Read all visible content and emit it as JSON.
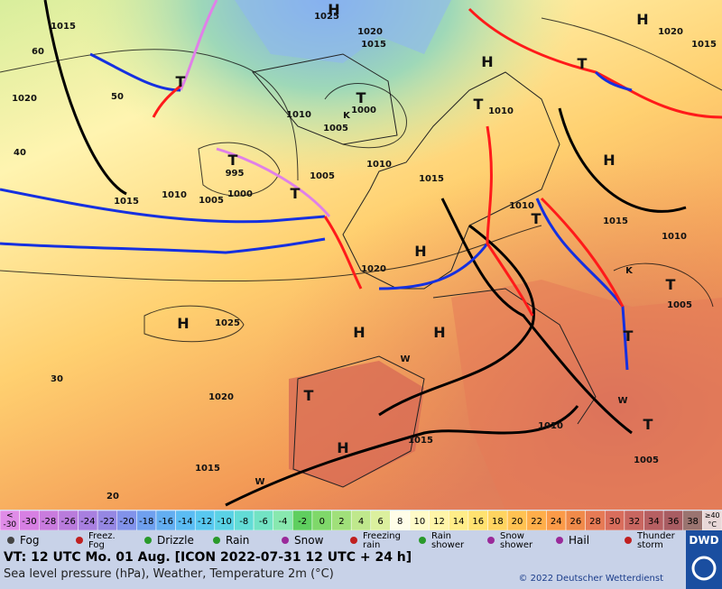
{
  "map": {
    "labels": [
      "1015",
      "1020",
      "40",
      "50",
      "60",
      "H",
      "1025",
      "1020",
      "1015",
      "T",
      "T",
      "1000",
      "K",
      "1005",
      "1010",
      "T",
      "995",
      "1000",
      "1005",
      "1010",
      "1015",
      "1005",
      "1010",
      "1015",
      "T",
      "H",
      "1020",
      "H",
      "1025",
      "H",
      "H",
      "1020",
      "T",
      "H",
      "1015",
      "1015",
      "30",
      "20",
      "H",
      "1020",
      "1015",
      "T",
      "H",
      "1015",
      "1010",
      "T",
      "1005",
      "T",
      "T",
      "1010",
      "1005",
      "W",
      "W",
      "W",
      "K",
      "1010",
      "T",
      "1010",
      "H",
      "T"
    ]
  },
  "color_scale": {
    "below": [
      "<",
      "-30"
    ],
    "steps": [
      -30,
      -28,
      -26,
      -24,
      -22,
      -20,
      -18,
      -16,
      -14,
      -12,
      -10,
      -8,
      -6,
      -4,
      -2,
      0,
      2,
      4,
      6,
      8,
      10,
      12,
      14,
      16,
      18,
      20,
      22,
      24,
      26,
      28,
      30,
      32,
      34,
      36,
      38
    ],
    "above": [
      "≥40",
      "°C"
    ],
    "colors": [
      "#e08ce8",
      "#d77fe3",
      "#c97bde",
      "#b97bdc",
      "#a87fe0",
      "#9587e3",
      "#8192ea",
      "#6fa0ef",
      "#63aef1",
      "#5bbcf3",
      "#58c8f0",
      "#5ad2e6",
      "#62dcd6",
      "#72e3c4",
      "#88e8af",
      "#5fcf5f",
      "#7fd86a",
      "#a0e07a",
      "#bfe88c",
      "#dbf09e",
      "#fffde8",
      "#fffbc8",
      "#fff5a8",
      "#ffed88",
      "#ffe270",
      "#ffd460",
      "#ffc252",
      "#ffae4a",
      "#fb9a48",
      "#f08a4a",
      "#e67a55",
      "#d96d5c",
      "#c86660",
      "#b65f62",
      "#a85c62",
      "#9a7470",
      "#e8d8d8"
    ]
  },
  "legend": [
    [
      "Fog"
    ],
    [
      "Freez.",
      "Fog"
    ],
    [
      "Drizzle"
    ],
    [
      "Rain"
    ],
    [
      "Snow"
    ],
    [
      "Freezing",
      "rain"
    ],
    [
      "Rain",
      "shower"
    ],
    [
      "Snow",
      "shower"
    ],
    [
      "Hail"
    ],
    [
      "Thunder",
      "storm"
    ]
  ],
  "footer": {
    "valid_time": "VT: 12 UTC Mo.  01 Aug. [ICON 2022-07-31  12 UTC + 24 h]",
    "description": "Sea level pressure (hPa), Weather, Temperature 2m (°C)",
    "copyright": "© 2022 Deutscher Wetterdienst",
    "logo": "DWD"
  }
}
